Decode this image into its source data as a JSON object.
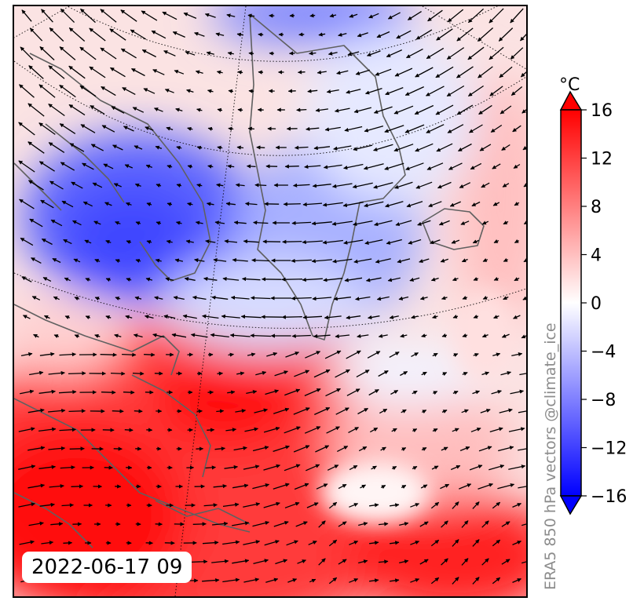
{
  "timestamp": "2022-06-17 09",
  "credit": "ERA5 850 hPa vectors @climate_ice",
  "colorbar": {
    "unit": "°C",
    "ticks": [
      "16",
      "12",
      "8",
      "4",
      "0",
      "−4",
      "−8",
      "−12",
      "−16"
    ],
    "min": -16,
    "max": 16
  },
  "colors": {
    "warm": "#ff0000",
    "cold": "#0000ff",
    "neutral": "#ffffff",
    "coastline": "#606060",
    "arrows": "#000000"
  }
}
